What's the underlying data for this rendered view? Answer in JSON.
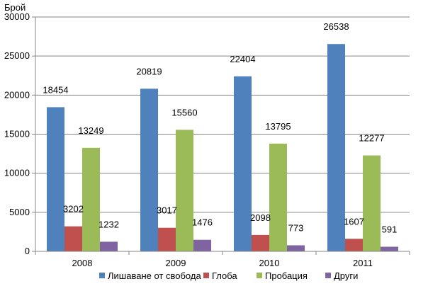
{
  "chart_data": {
    "type": "bar",
    "title": "",
    "xlabel": "",
    "ylabel": "Брой",
    "ylim": [
      0,
      30000
    ],
    "yticks": [
      0,
      5000,
      10000,
      15000,
      20000,
      25000,
      30000
    ],
    "grid": true,
    "legend_position": "bottom",
    "categories": [
      "2008",
      "2009",
      "2010",
      "2011"
    ],
    "series": [
      {
        "name": "Лишаване от свобода",
        "color": "#4F81BD",
        "values": [
          18454,
          20819,
          22404,
          26538
        ]
      },
      {
        "name": "Глоба",
        "color": "#C0504D",
        "values": [
          3202,
          3017,
          2098,
          1607
        ]
      },
      {
        "name": "Пробация",
        "color": "#9BBB59",
        "values": [
          13249,
          15560,
          13795,
          12277
        ]
      },
      {
        "name": "Други",
        "color": "#8064A2",
        "values": [
          1232,
          1476,
          773,
          591
        ]
      }
    ]
  }
}
